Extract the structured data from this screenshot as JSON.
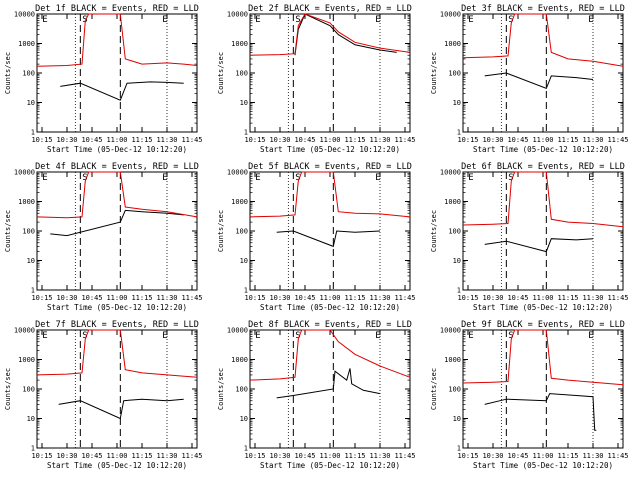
{
  "chart_data": [
    {
      "type": "line",
      "title": "Det 1f BLACK = Events, RED = LLD",
      "xlabel": "Start Time (05-Dec-12 10:12:20)",
      "ylabel": "Counts/sec",
      "yscale": "log",
      "ylim": [
        1,
        10000
      ],
      "xlim_minutes": [
        "10:12",
        "11:48"
      ],
      "xticks": [
        "10:15",
        "10:30",
        "10:45",
        "11:00",
        "11:15",
        "11:30",
        "11:45"
      ],
      "yticks": [
        "1",
        "10",
        "100",
        "1000",
        "10000"
      ],
      "markers": {
        "E_left": "10:18",
        "S": "10:42",
        "E_right": "11:30",
        "dashed": [
          "10:38",
          "11:02"
        ],
        "dotted": [
          "10:35",
          "11:30"
        ]
      },
      "series": [
        {
          "name": "Events",
          "color": "#000000",
          "x": [
            "10:26",
            "10:38",
            "11:02",
            "11:06",
            "11:20",
            "11:30",
            "11:40"
          ],
          "y": [
            35,
            45,
            12,
            45,
            50,
            48,
            45
          ]
        },
        {
          "name": "LLD",
          "color": "#e00000",
          "x": [
            "10:12",
            "10:30",
            "10:39",
            "10:41",
            "10:43",
            "11:02",
            "11:05",
            "11:15",
            "11:30",
            "11:40",
            "11:48"
          ],
          "y": [
            170,
            180,
            200,
            6000,
            20000,
            20000,
            300,
            200,
            220,
            200,
            180
          ]
        }
      ]
    },
    {
      "type": "line",
      "title": "Det 2f BLACK = Events, RED = LLD",
      "xlabel": "Start Time (05-Dec-12 10:12:20)",
      "ylabel": "Counts/sec",
      "yscale": "log",
      "ylim": [
        1,
        10000
      ],
      "xticks": [
        "10:15",
        "10:30",
        "10:45",
        "11:00",
        "11:15",
        "11:30",
        "11:45"
      ],
      "yticks": [
        "1",
        "10",
        "100",
        "1000",
        "10000"
      ],
      "markers": {
        "E_left": "10:18",
        "S": "10:42",
        "E_right": "11:30",
        "dashed": [
          "10:38",
          "11:02"
        ],
        "dotted": [
          "10:35",
          "11:30"
        ]
      },
      "series": [
        {
          "name": "Events",
          "color": "#000000",
          "x": [
            "10:39",
            "10:41",
            "10:45",
            "11:00",
            "11:05",
            "11:15",
            "11:30",
            "11:40"
          ],
          "y": [
            400,
            3000,
            20000,
            4000,
            2000,
            900,
            600,
            500
          ]
        },
        {
          "name": "LLD",
          "color": "#e00000",
          "x": [
            "10:12",
            "10:30",
            "10:39",
            "10:41",
            "10:45",
            "11:00",
            "11:05",
            "11:15",
            "11:30",
            "11:48"
          ],
          "y": [
            400,
            420,
            450,
            4000,
            20000,
            5000,
            2500,
            1100,
            700,
            500
          ]
        }
      ]
    },
    {
      "type": "line",
      "title": "Det 3f BLACK = Events, RED = LLD",
      "xlabel": "Start Time (05-Dec-12 10:12:20)",
      "ylabel": "Counts/sec",
      "yscale": "log",
      "ylim": [
        1,
        10000
      ],
      "xticks": [
        "10:15",
        "10:30",
        "10:45",
        "11:00",
        "11:15",
        "11:30",
        "11:45"
      ],
      "yticks": [
        "1",
        "10",
        "100",
        "1000",
        "10000"
      ],
      "markers": {
        "E_left": "10:18",
        "S": "10:42",
        "E_right": "11:30",
        "dashed": [
          "10:38",
          "11:02"
        ],
        "dotted": [
          "10:35",
          "11:30"
        ]
      },
      "series": [
        {
          "name": "Events",
          "color": "#000000",
          "x": [
            "10:25",
            "10:38",
            "11:02",
            "11:05",
            "11:20",
            "11:30"
          ],
          "y": [
            80,
            100,
            30,
            80,
            70,
            60
          ]
        },
        {
          "name": "LLD",
          "color": "#e00000",
          "x": [
            "10:12",
            "10:30",
            "10:39",
            "10:41",
            "10:43",
            "11:02",
            "11:05",
            "11:15",
            "11:30",
            "11:48"
          ],
          "y": [
            330,
            350,
            380,
            5000,
            20000,
            20000,
            500,
            300,
            250,
            170
          ]
        }
      ]
    },
    {
      "type": "line",
      "title": "Det 4f BLACK = Events, RED = LLD",
      "xlabel": "Start Time (05-Dec-12 10:12:20)",
      "ylabel": "Counts/sec",
      "yscale": "log",
      "ylim": [
        1,
        10000
      ],
      "xticks": [
        "10:15",
        "10:30",
        "10:45",
        "11:00",
        "11:15",
        "11:30",
        "11:45"
      ],
      "yticks": [
        "1",
        "10",
        "100",
        "1000",
        "10000"
      ],
      "markers": {
        "E_left": "10:18",
        "S": "10:42",
        "E_right": "11:30",
        "dashed": [
          "10:38",
          "11:02"
        ],
        "dotted": [
          "10:35",
          "11:30"
        ]
      },
      "series": [
        {
          "name": "Events",
          "color": "#000000",
          "x": [
            "10:20",
            "10:30",
            "11:02",
            "11:05",
            "11:15",
            "11:30",
            "11:40"
          ],
          "y": [
            80,
            70,
            200,
            500,
            450,
            400,
            350
          ]
        },
        {
          "name": "LLD",
          "color": "#e00000",
          "x": [
            "10:12",
            "10:30",
            "10:39",
            "10:41",
            "10:43",
            "11:02",
            "11:05",
            "11:15",
            "11:30",
            "11:48"
          ],
          "y": [
            300,
            280,
            300,
            5000,
            20000,
            20000,
            650,
            550,
            450,
            300
          ]
        }
      ]
    },
    {
      "type": "line",
      "title": "Det 5f BLACK = Events, RED = LLD",
      "xlabel": "Start Time (05-Dec-12 10:12:20)",
      "ylabel": "Counts/sec",
      "yscale": "log",
      "ylim": [
        1,
        10000
      ],
      "xticks": [
        "10:15",
        "10:30",
        "10:45",
        "11:00",
        "11:15",
        "11:30",
        "11:45"
      ],
      "yticks": [
        "1",
        "10",
        "100",
        "1000",
        "10000"
      ],
      "markers": {
        "E_left": "10:18",
        "S": "10:42",
        "E_right": "11:30",
        "dashed": [
          "10:38",
          "11:02"
        ],
        "dotted": [
          "10:35",
          "11:30"
        ]
      },
      "series": [
        {
          "name": "Events",
          "color": "#000000",
          "x": [
            "10:28",
            "10:38",
            "11:02",
            "11:04",
            "11:15",
            "11:30"
          ],
          "y": [
            90,
            100,
            30,
            100,
            90,
            100
          ]
        },
        {
          "name": "LLD",
          "color": "#e00000",
          "x": [
            "10:12",
            "10:30",
            "10:39",
            "10:41",
            "10:43",
            "11:02",
            "11:05",
            "11:15",
            "11:30",
            "11:48"
          ],
          "y": [
            300,
            320,
            350,
            5000,
            20000,
            20000,
            450,
            400,
            380,
            300
          ]
        }
      ]
    },
    {
      "type": "line",
      "title": "Det 6f BLACK = Events, RED = LLD",
      "xlabel": "Start Time (05-Dec-12 10:12:20)",
      "ylabel": "Counts/sec",
      "yscale": "log",
      "ylim": [
        1,
        10000
      ],
      "xticks": [
        "10:15",
        "10:30",
        "10:45",
        "11:00",
        "11:15",
        "11:30",
        "11:45"
      ],
      "yticks": [
        "1",
        "10",
        "100",
        "1000",
        "10000"
      ],
      "markers": {
        "E_left": "10:18",
        "S": "10:42",
        "E_right": "11:30",
        "dashed": [
          "10:38",
          "11:02"
        ],
        "dotted": [
          "10:35",
          "11:30"
        ]
      },
      "series": [
        {
          "name": "Events",
          "color": "#000000",
          "x": [
            "10:25",
            "10:38",
            "11:02",
            "11:05",
            "11:20",
            "11:30"
          ],
          "y": [
            35,
            45,
            20,
            55,
            50,
            55
          ]
        },
        {
          "name": "LLD",
          "color": "#e00000",
          "x": [
            "10:12",
            "10:30",
            "10:39",
            "10:41",
            "10:43",
            "11:02",
            "11:05",
            "11:15",
            "11:30",
            "11:48"
          ],
          "y": [
            160,
            170,
            180,
            5000,
            20000,
            20000,
            250,
            200,
            180,
            140
          ]
        }
      ]
    },
    {
      "type": "line",
      "title": "Det 7f BLACK = Events, RED = LLD",
      "xlabel": "Start Time (05-Dec-12 10:12:20)",
      "ylabel": "Counts/sec",
      "yscale": "log",
      "ylim": [
        1,
        10000
      ],
      "xticks": [
        "10:15",
        "10:30",
        "10:45",
        "11:00",
        "11:15",
        "11:30",
        "11:45"
      ],
      "yticks": [
        "1",
        "10",
        "100",
        "1000",
        "10000"
      ],
      "markers": {
        "E_left": "10:18",
        "S": "10:42",
        "E_right": "11:30",
        "dashed": [
          "10:38",
          "11:02"
        ],
        "dotted": [
          "10:35",
          "11:30"
        ]
      },
      "series": [
        {
          "name": "Events",
          "color": "#000000",
          "x": [
            "10:25",
            "10:38",
            "11:02",
            "11:04",
            "11:15",
            "11:30",
            "11:40"
          ],
          "y": [
            30,
            40,
            10,
            40,
            45,
            40,
            45
          ]
        },
        {
          "name": "LLD",
          "color": "#e00000",
          "x": [
            "10:12",
            "10:30",
            "10:39",
            "10:41",
            "10:43",
            "11:02",
            "11:05",
            "11:15",
            "11:30",
            "11:48"
          ],
          "y": [
            300,
            320,
            350,
            5000,
            20000,
            20000,
            450,
            350,
            300,
            250
          ]
        }
      ]
    },
    {
      "type": "line",
      "title": "Det 8f BLACK = Events, RED = LLD",
      "xlabel": "Start Time (05-Dec-12 10:12:20)",
      "ylabel": "Counts/sec",
      "yscale": "log",
      "ylim": [
        1,
        10000
      ],
      "xticks": [
        "10:15",
        "10:30",
        "10:45",
        "11:00",
        "11:15",
        "11:30",
        "11:45"
      ],
      "yticks": [
        "1",
        "10",
        "100",
        "1000",
        "10000"
      ],
      "markers": {
        "E_left": "10:18",
        "S": "10:42",
        "E_right": "11:30",
        "dashed": [
          "10:38",
          "11:02"
        ],
        "dotted": [
          "10:35",
          "11:30"
        ]
      },
      "series": [
        {
          "name": "Events",
          "color": "#000000",
          "x": [
            "10:28",
            "10:38",
            "11:02",
            "11:03",
            "11:10",
            "11:12",
            "11:13",
            "11:20",
            "11:30"
          ],
          "y": [
            50,
            60,
            100,
            400,
            200,
            500,
            150,
            90,
            70
          ]
        },
        {
          "name": "LLD",
          "color": "#e00000",
          "x": [
            "10:12",
            "10:30",
            "10:39",
            "10:41",
            "10:43",
            "11:00",
            "11:05",
            "11:15",
            "11:30",
            "11:48"
          ],
          "y": [
            200,
            220,
            250,
            5000,
            20000,
            10000,
            4000,
            1500,
            600,
            250
          ]
        }
      ]
    },
    {
      "type": "line",
      "title": "Det 9f BLACK = Events, RED = LLD",
      "xlabel": "Start Time (05-Dec-12 10:12:20)",
      "ylabel": "Counts/sec",
      "yscale": "log",
      "ylim": [
        1,
        10000
      ],
      "xticks": [
        "10:15",
        "10:30",
        "10:45",
        "11:00",
        "11:15",
        "11:30",
        "11:45"
      ],
      "yticks": [
        "1",
        "10",
        "100",
        "1000",
        "10000"
      ],
      "markers": {
        "E_left": "10:18",
        "S": "10:42",
        "E_right": "11:30",
        "dashed": [
          "10:38",
          "11:02"
        ],
        "dotted": [
          "10:35",
          "11:30"
        ]
      },
      "series": [
        {
          "name": "Events",
          "color": "#000000",
          "x": [
            "10:25",
            "10:38",
            "11:02",
            "11:04",
            "11:20",
            "11:30",
            "11:31",
            "11:32"
          ],
          "y": [
            30,
            45,
            40,
            70,
            60,
            55,
            4,
            4
          ]
        },
        {
          "name": "LLD",
          "color": "#e00000",
          "x": [
            "10:12",
            "10:30",
            "10:39",
            "10:41",
            "10:43",
            "11:02",
            "11:05",
            "11:15",
            "11:30",
            "11:48"
          ],
          "y": [
            160,
            170,
            180,
            5000,
            20000,
            20000,
            230,
            200,
            170,
            140
          ]
        }
      ]
    }
  ]
}
